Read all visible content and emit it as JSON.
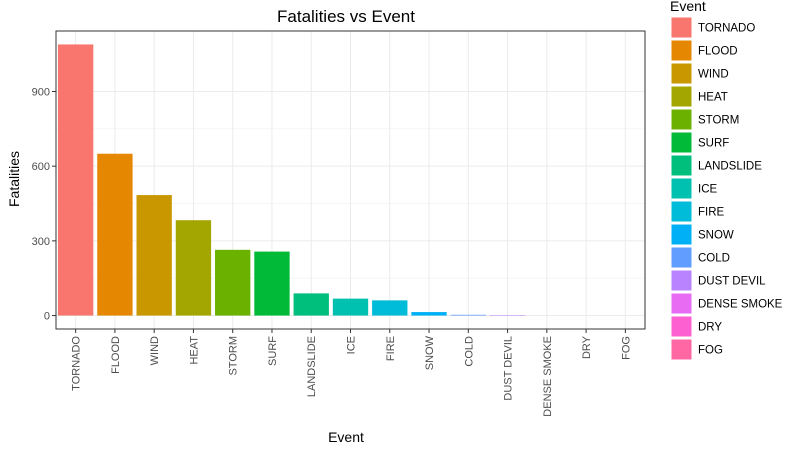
{
  "chart_data": {
    "type": "bar",
    "title": "Fatalities vs Event",
    "xlabel": "Event",
    "ylabel": "Fatalities",
    "categories": [
      "TORNADO",
      "FLOOD",
      "WIND",
      "HEAT",
      "STORM",
      "SURF",
      "LANDSLIDE",
      "ICE",
      "FIRE",
      "SNOW",
      "COLD",
      "DUST DEVIL",
      "DENSE SMOKE",
      "DRY",
      "FOG"
    ],
    "values": [
      1089,
      650,
      484,
      383,
      264,
      257,
      89,
      68,
      61,
      14,
      3,
      2,
      0,
      0,
      0
    ],
    "colors": [
      "#F8766D",
      "#E58700",
      "#C99800",
      "#A3A500",
      "#6BB100",
      "#00BA38",
      "#00BF7D",
      "#00C0AF",
      "#00BCD8",
      "#00B0F6",
      "#619CFF",
      "#B983FF",
      "#E76BF3",
      "#FD61D1",
      "#FF67A4"
    ],
    "y_ticks": [
      0,
      300,
      600,
      900
    ],
    "ylim": [
      -54,
      1143
    ],
    "grid": true,
    "legend": {
      "title": "Event",
      "placement": "right"
    }
  }
}
